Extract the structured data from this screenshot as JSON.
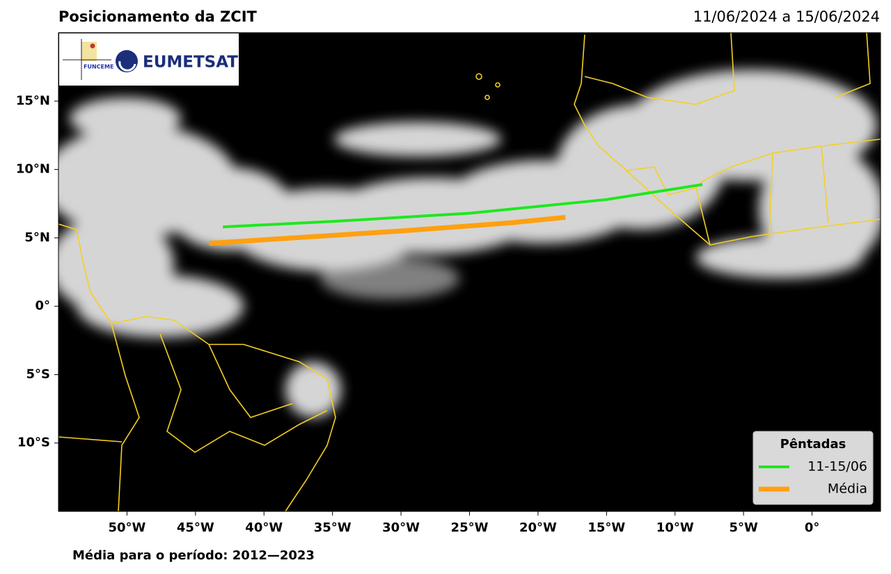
{
  "chart_data": {
    "type": "line",
    "title": "Posicionamento da ZCIT",
    "subtitle": "11/06/2024 a 15/06/2024",
    "footnote": "Média para o período: 2012—2023",
    "logos": [
      "FUNCEME",
      "EUMETSAT"
    ],
    "legend_title": "Pêntadas",
    "legend": "lower right",
    "xlim": [
      -55,
      5
    ],
    "ylim": [
      -15,
      20
    ],
    "xticks": [
      {
        "value": -50,
        "label": "50°W"
      },
      {
        "value": -45,
        "label": "45°W"
      },
      {
        "value": -40,
        "label": "40°W"
      },
      {
        "value": -35,
        "label": "35°W"
      },
      {
        "value": -30,
        "label": "30°W"
      },
      {
        "value": -25,
        "label": "25°W"
      },
      {
        "value": -20,
        "label": "20°W"
      },
      {
        "value": -15,
        "label": "15°W"
      },
      {
        "value": -10,
        "label": "10°W"
      },
      {
        "value": -5,
        "label": "5°W"
      },
      {
        "value": 0,
        "label": "0°"
      }
    ],
    "yticks": [
      {
        "value": -10,
        "label": "10°S"
      },
      {
        "value": -5,
        "label": "5°S"
      },
      {
        "value": 0,
        "label": "0°"
      },
      {
        "value": 5,
        "label": "5°N"
      },
      {
        "value": 10,
        "label": "10°N"
      },
      {
        "value": 15,
        "label": "15°N"
      }
    ],
    "series": [
      {
        "name": "11-15/06",
        "color": "#1ee81e",
        "width": 4,
        "x": [
          -43,
          -35,
          -25,
          -15,
          -8
        ],
        "values": [
          5.8,
          6.2,
          6.8,
          7.8,
          8.9
        ]
      },
      {
        "name": "Média",
        "color": "#ffa010",
        "width": 7,
        "x": [
          -44,
          -30,
          -22,
          -18
        ],
        "values": [
          4.6,
          5.5,
          6.1,
          6.5
        ]
      }
    ]
  }
}
